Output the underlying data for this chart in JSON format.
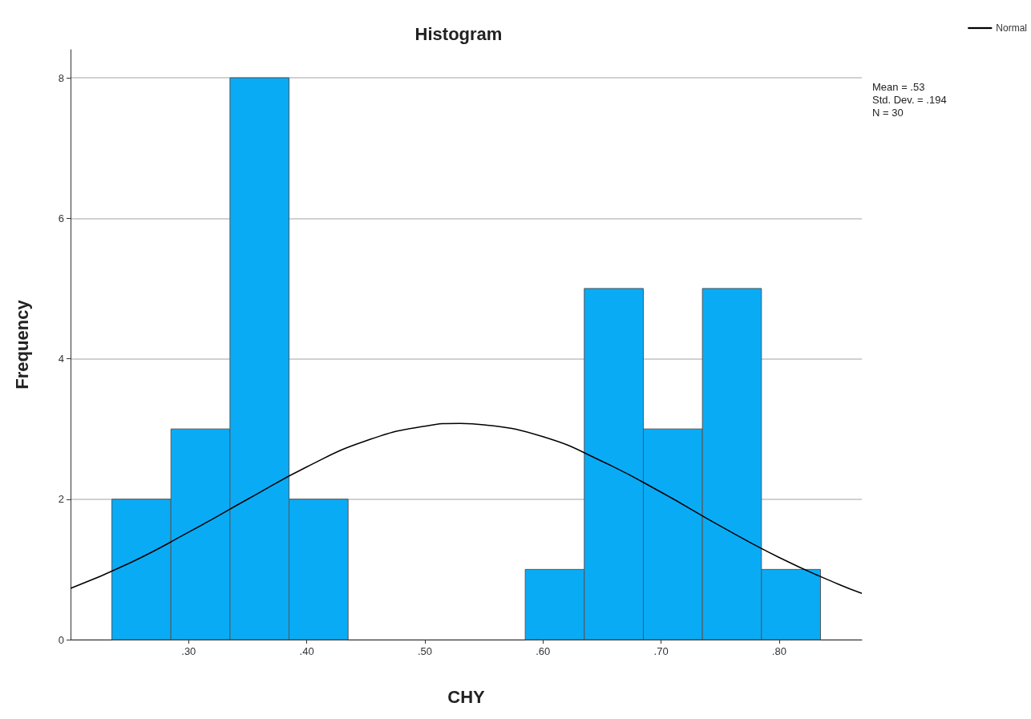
{
  "chart_data": {
    "type": "histogram",
    "title": "Histogram",
    "xlabel": "CHY",
    "ylabel": "Frequency",
    "bins": [
      0.235,
      0.285,
      0.335,
      0.385,
      0.435,
      0.485,
      0.535,
      0.585,
      0.635,
      0.685,
      0.735,
      0.785,
      0.835
    ],
    "values": [
      2,
      3,
      8,
      2,
      0,
      0,
      0,
      1,
      5,
      3,
      5,
      1
    ],
    "color": "#0aabf5",
    "series": [
      {
        "type": "line",
        "name": "Normal",
        "color": "#000000",
        "x": [
          0.2,
          0.25,
          0.3,
          0.35,
          0.4,
          0.45,
          0.5,
          0.53,
          0.55,
          0.6,
          0.65,
          0.7,
          0.75,
          0.8,
          0.85,
          0.87
        ],
        "values": [
          0.73,
          1.09,
          1.53,
          2.0,
          2.46,
          2.83,
          3.04,
          3.08,
          3.06,
          2.89,
          2.54,
          2.1,
          1.62,
          1.17,
          0.79,
          0.66
        ]
      }
    ],
    "xlim": [
      0.2,
      0.87
    ],
    "xticks": [
      {
        "value": 0.3,
        "label": ".30"
      },
      {
        "value": 0.4,
        "label": ".40"
      },
      {
        "value": 0.5,
        "label": ".50"
      },
      {
        "value": 0.6,
        "label": ".60"
      },
      {
        "value": 0.7,
        "label": ".70"
      },
      {
        "value": 0.8,
        "label": ".80"
      }
    ],
    "ylim": [
      0,
      8.4
    ],
    "yticks": [
      0,
      2,
      4,
      6,
      8
    ],
    "grid": "y",
    "legend": "top right",
    "marker": "none",
    "line_style": "solid",
    "annotations": [
      "Mean = .53",
      "Std. Dev. = .194",
      "N = 30"
    ]
  }
}
